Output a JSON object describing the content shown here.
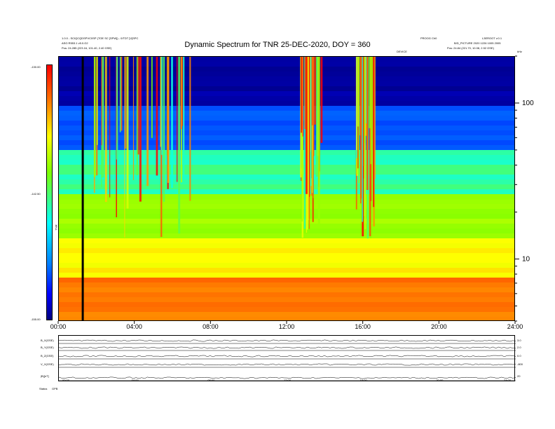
{
  "header": {
    "left_lines": [
      "1.0.0 - SCIQCQDSPVC0SP (TOE SC [SPW]) - 0/TDT [V]SPC",
      "ASG R553.1 v5.0.G2",
      "Pos:   24.285 (223.16, 101.40, 2.40 GSE)"
    ],
    "right_lines": [
      "PROOG Ch0",
      "L3EROOT v.0.1",
      "B/D_PICTURE 2020 1226 1005 2005",
      "Pos:   24.84 (221.70, 10.08, 2.52 GSE)"
    ],
    "mid_small": "DEVICE",
    "right_small": "kHz"
  },
  "colors": {
    "background": "#ffffff",
    "axis": "#000000",
    "colormap": [
      "#000080",
      "#0000ff",
      "#0080ff",
      "#00ffff",
      "#7fff00",
      "#ffff00",
      "#ff6600",
      "#ff0000"
    ]
  },
  "chart_data": [
    {
      "type": "heatmap",
      "title": "Dynamic Spectrum for TNR 25-DEC-2020, DOY = 360",
      "x_ticks": [
        "00:00",
        "04:00",
        "08:00",
        "12:00",
        "16:00",
        "20:00",
        "24:00"
      ],
      "x_range_hours": [
        0,
        24
      ],
      "y_scale": "log",
      "y_range": [
        4,
        200
      ],
      "y_ticks": [
        {
          "value": 100,
          "label": "100"
        },
        {
          "value": 10,
          "label": "10"
        }
      ],
      "colorbar": {
        "ticks": [
          {
            "value": -130.0,
            "label": "-130.00"
          },
          {
            "value": -142.5,
            "label": "-142.50"
          },
          {
            "value": -155.0,
            "label": "-155.00"
          }
        ],
        "label": "TNR"
      },
      "features": {
        "noise_floor_levels": [
          -154,
          -149,
          -143,
          -140,
          -137,
          -134
        ],
        "burst_windows_hours": [
          [
            1.8,
            7.0
          ],
          [
            12.6,
            13.8
          ],
          [
            15.6,
            16.6
          ]
        ],
        "data_gap_hour": 1.2
      }
    },
    {
      "type": "line",
      "panels": [
        {
          "label": "B_X(GSE)",
          "right_label": "3.0"
        },
        {
          "label": "B_Y(GSE)",
          "right_label": "2.0"
        },
        {
          "label": "B_Z(GSE)",
          "right_label": "0.0"
        },
        {
          "label": "V_X(GSE)",
          "right_label": "-800"
        },
        {
          "label": "|B|[nT]",
          "right_label": "20"
        }
      ],
      "x_ticks": [
        "00:00",
        "04:00",
        "08:00",
        "12:00",
        "16:00",
        "20:00",
        "24:00"
      ],
      "x_range_hours": [
        0,
        24
      ]
    }
  ],
  "footer": {
    "status_label": "Status",
    "status_value": "GPB"
  }
}
